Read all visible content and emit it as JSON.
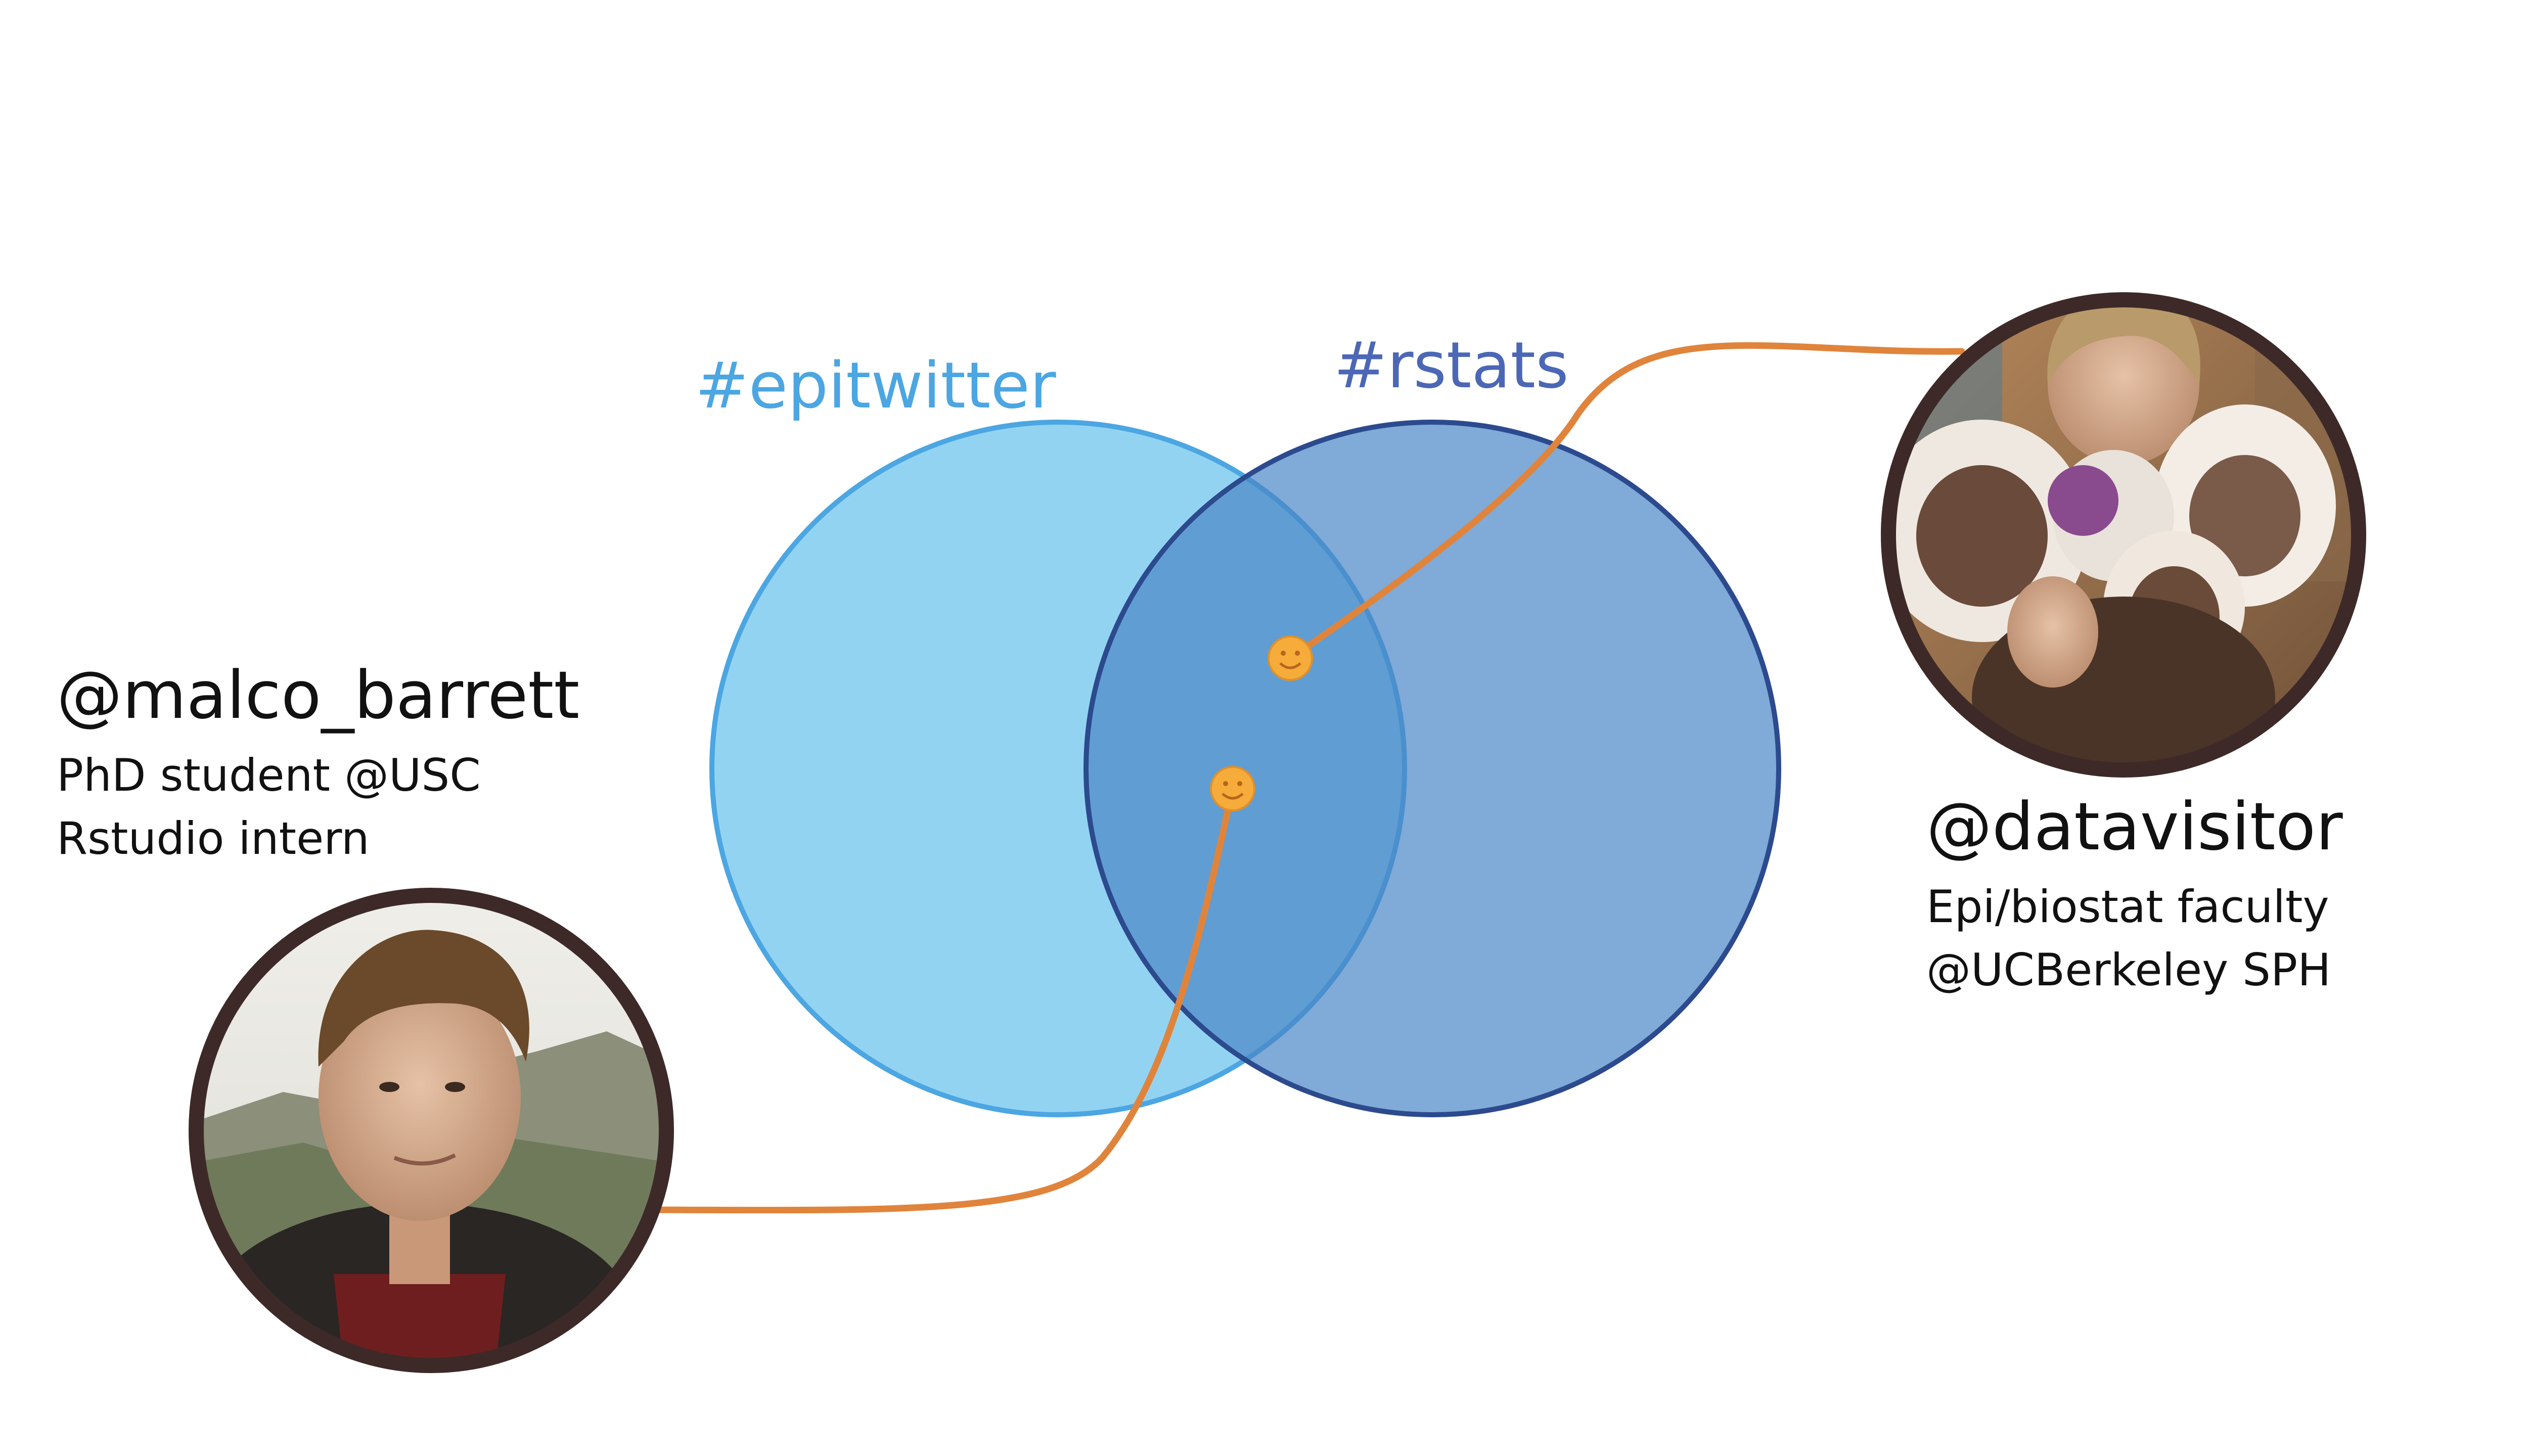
{
  "venn": {
    "left_set": {
      "label": "#epitwitter",
      "fill": "#93d3f2",
      "stroke": "#4ba6e2",
      "label_color": "#4ba6e2"
    },
    "right_set": {
      "label": "#rstats",
      "fill": "#4a86c6",
      "stroke": "#2c4a8e",
      "label_color": "#4b67b5"
    },
    "markers": [
      {
        "name": "smiley-datavisitor",
        "glyph": "☺",
        "color": "#f1a534"
      },
      {
        "name": "smiley-malco",
        "glyph": "☺",
        "color": "#f1a534"
      }
    ],
    "connector_color": "#e0843c"
  },
  "people": [
    {
      "handle": "@malco_barrett",
      "line1": "PhD student @USC",
      "line2": "Rstudio intern",
      "avatar_alt": "photo of @malco_barrett"
    },
    {
      "handle": "@datavisitor",
      "line1": "Epi/biostat faculty",
      "line2": "@UCBerkeley SPH",
      "avatar_alt": "photo of @datavisitor holding plush sea otters"
    }
  ]
}
